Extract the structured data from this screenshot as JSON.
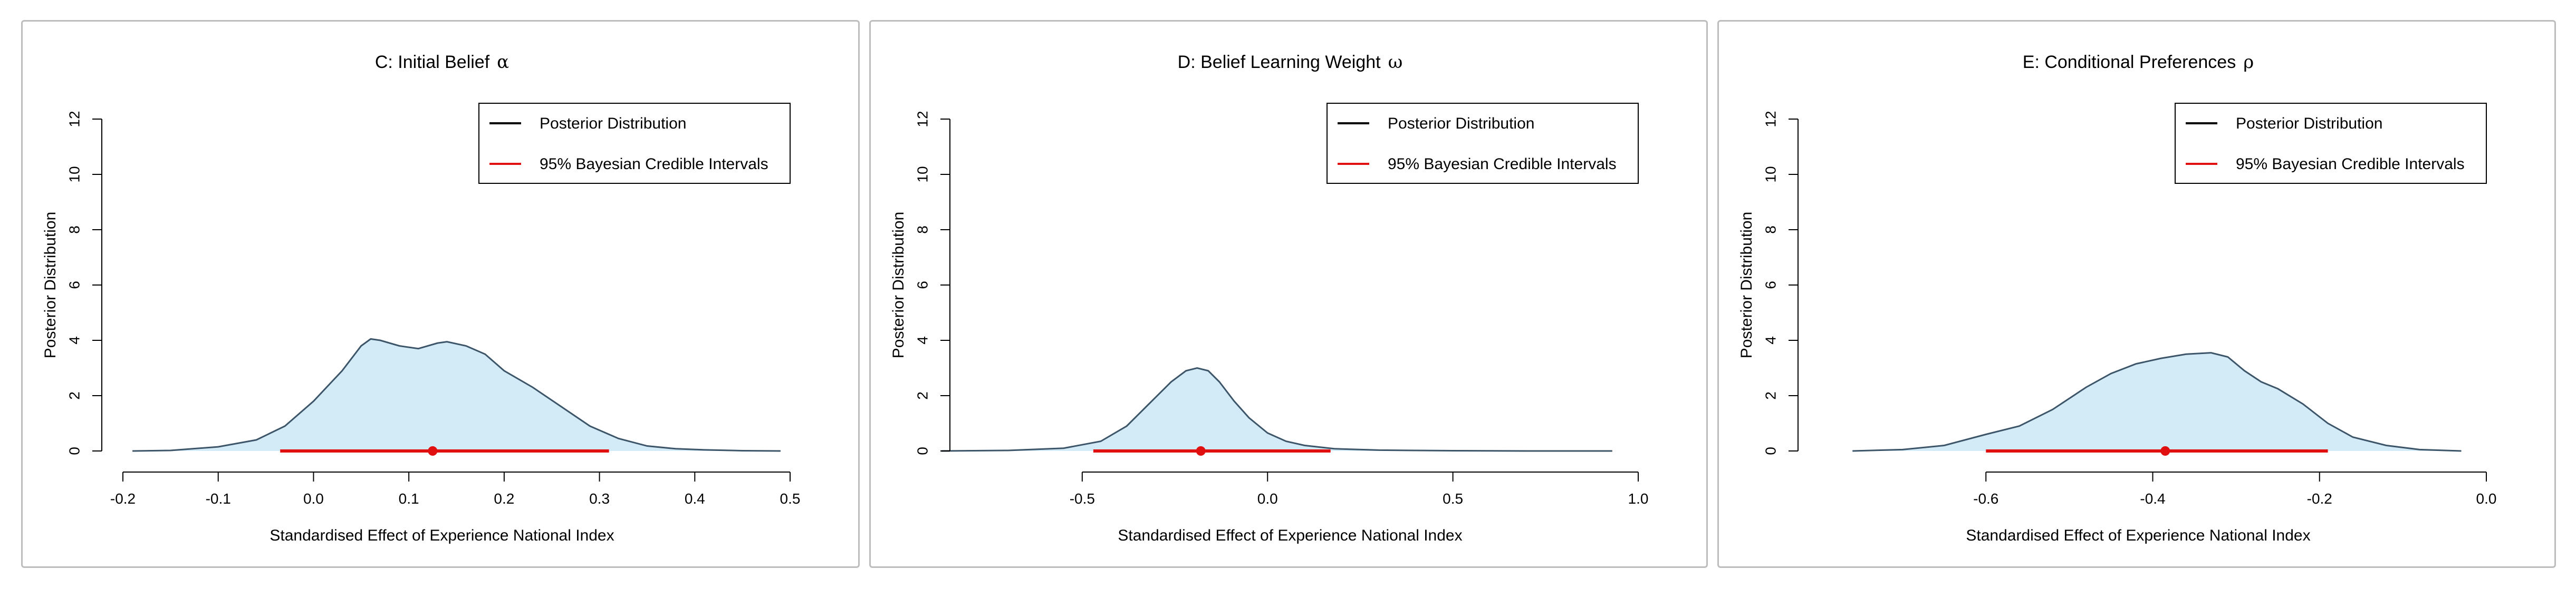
{
  "chart_data": [
    {
      "type": "area",
      "title": "C: Initial Belief",
      "title_symbol": "α",
      "xlabel": "Standardised Effect of Experience National Index",
      "ylabel": "Posterior Distribution",
      "xlim": [
        -0.2,
        0.5
      ],
      "ylim": [
        0,
        12
      ],
      "xticks": [
        -0.2,
        -0.1,
        0.0,
        0.1,
        0.2,
        0.3,
        0.4,
        0.5
      ],
      "xtick_labels": [
        "-0.2",
        "-0.1",
        "0.0",
        "0.1",
        "0.2",
        "0.3",
        "0.4",
        "0.5"
      ],
      "yticks": [
        0,
        2,
        4,
        6,
        8,
        10,
        12
      ],
      "ytick_labels": [
        "0",
        "2",
        "4",
        "6",
        "8",
        "10",
        "12"
      ],
      "legend": {
        "placement": "top-right",
        "entries": [
          "Posterior Distribution",
          "95% Bayesian Credible Intervals"
        ]
      },
      "density": [
        [
          -0.19,
          0
        ],
        [
          -0.15,
          0.02
        ],
        [
          -0.1,
          0.15
        ],
        [
          -0.06,
          0.4
        ],
        [
          -0.03,
          0.9
        ],
        [
          0.0,
          1.8
        ],
        [
          0.03,
          2.9
        ],
        [
          0.05,
          3.8
        ],
        [
          0.06,
          4.05
        ],
        [
          0.07,
          4.0
        ],
        [
          0.09,
          3.8
        ],
        [
          0.11,
          3.7
        ],
        [
          0.13,
          3.9
        ],
        [
          0.14,
          3.95
        ],
        [
          0.16,
          3.8
        ],
        [
          0.18,
          3.5
        ],
        [
          0.2,
          2.9
        ],
        [
          0.23,
          2.3
        ],
        [
          0.26,
          1.6
        ],
        [
          0.29,
          0.9
        ],
        [
          0.32,
          0.45
        ],
        [
          0.35,
          0.18
        ],
        [
          0.38,
          0.08
        ],
        [
          0.41,
          0.04
        ],
        [
          0.45,
          0.01
        ],
        [
          0.49,
          0
        ]
      ],
      "interval": {
        "low": -0.035,
        "high": 0.31,
        "point": 0.125
      },
      "colors": {
        "fill": "#d3eaf7",
        "line": "#3c5568",
        "interval": "#e01010"
      }
    },
    {
      "type": "area",
      "title": "D: Belief Learning Weight",
      "title_symbol": "ω",
      "xlabel": "Standardised Effect of Experience National Index",
      "ylabel": "Posterior Distribution",
      "xlim": [
        -0.8,
        1.0
      ],
      "ylim": [
        0,
        12
      ],
      "xticks": [
        -0.5,
        0.0,
        0.5,
        1.0
      ],
      "xtick_labels": [
        "-0.5",
        "0.0",
        "0.5",
        "1.0"
      ],
      "yticks": [
        0,
        2,
        4,
        6,
        8,
        10,
        12
      ],
      "ytick_labels": [
        "0",
        "2",
        "4",
        "6",
        "8",
        "10",
        "12"
      ],
      "legend": {
        "placement": "top-right",
        "entries": [
          "Posterior Distribution",
          "95% Bayesian Credible Intervals"
        ]
      },
      "density": [
        [
          -0.88,
          0
        ],
        [
          -0.7,
          0.02
        ],
        [
          -0.55,
          0.1
        ],
        [
          -0.45,
          0.35
        ],
        [
          -0.38,
          0.9
        ],
        [
          -0.32,
          1.7
        ],
        [
          -0.26,
          2.5
        ],
        [
          -0.22,
          2.9
        ],
        [
          -0.19,
          3.0
        ],
        [
          -0.16,
          2.9
        ],
        [
          -0.13,
          2.5
        ],
        [
          -0.09,
          1.8
        ],
        [
          -0.05,
          1.2
        ],
        [
          0.0,
          0.65
        ],
        [
          0.05,
          0.35
        ],
        [
          0.1,
          0.2
        ],
        [
          0.18,
          0.08
        ],
        [
          0.3,
          0.03
        ],
        [
          0.5,
          0.01
        ],
        [
          0.7,
          0
        ],
        [
          0.93,
          0
        ]
      ],
      "interval": {
        "low": -0.47,
        "high": 0.17,
        "point": -0.18
      },
      "colors": {
        "fill": "#d3eaf7",
        "line": "#3c5568",
        "interval": "#e01010"
      }
    },
    {
      "type": "area",
      "title": "E: Conditional Preferences",
      "title_symbol": "ρ",
      "xlabel": "Standardised Effect of Experience National Index",
      "ylabel": "Posterior Distribution",
      "xlim": [
        -0.8,
        0.0
      ],
      "ylim": [
        0,
        12
      ],
      "xticks": [
        -0.6,
        -0.4,
        -0.2,
        0.0
      ],
      "xtick_labels": [
        "-0.6",
        "-0.4",
        "-0.2",
        "0.0"
      ],
      "yticks": [
        0,
        2,
        4,
        6,
        8,
        10,
        12
      ],
      "ytick_labels": [
        "0",
        "2",
        "4",
        "6",
        "8",
        "10",
        "12"
      ],
      "legend": {
        "placement": "top-right",
        "entries": [
          "Posterior Distribution",
          "95% Bayesian Credible Intervals"
        ]
      },
      "density": [
        [
          -0.76,
          0
        ],
        [
          -0.7,
          0.05
        ],
        [
          -0.65,
          0.2
        ],
        [
          -0.6,
          0.6
        ],
        [
          -0.56,
          0.9
        ],
        [
          -0.52,
          1.5
        ],
        [
          -0.48,
          2.3
        ],
        [
          -0.45,
          2.8
        ],
        [
          -0.42,
          3.15
        ],
        [
          -0.39,
          3.35
        ],
        [
          -0.36,
          3.5
        ],
        [
          -0.33,
          3.55
        ],
        [
          -0.31,
          3.4
        ],
        [
          -0.29,
          2.9
        ],
        [
          -0.27,
          2.5
        ],
        [
          -0.25,
          2.25
        ],
        [
          -0.22,
          1.7
        ],
        [
          -0.19,
          1.0
        ],
        [
          -0.16,
          0.5
        ],
        [
          -0.12,
          0.2
        ],
        [
          -0.08,
          0.05
        ],
        [
          -0.03,
          0
        ]
      ],
      "interval": {
        "low": -0.6,
        "high": -0.19,
        "point": -0.385
      },
      "colors": {
        "fill": "#d3eaf7",
        "line": "#3c5568",
        "interval": "#e01010"
      }
    }
  ]
}
